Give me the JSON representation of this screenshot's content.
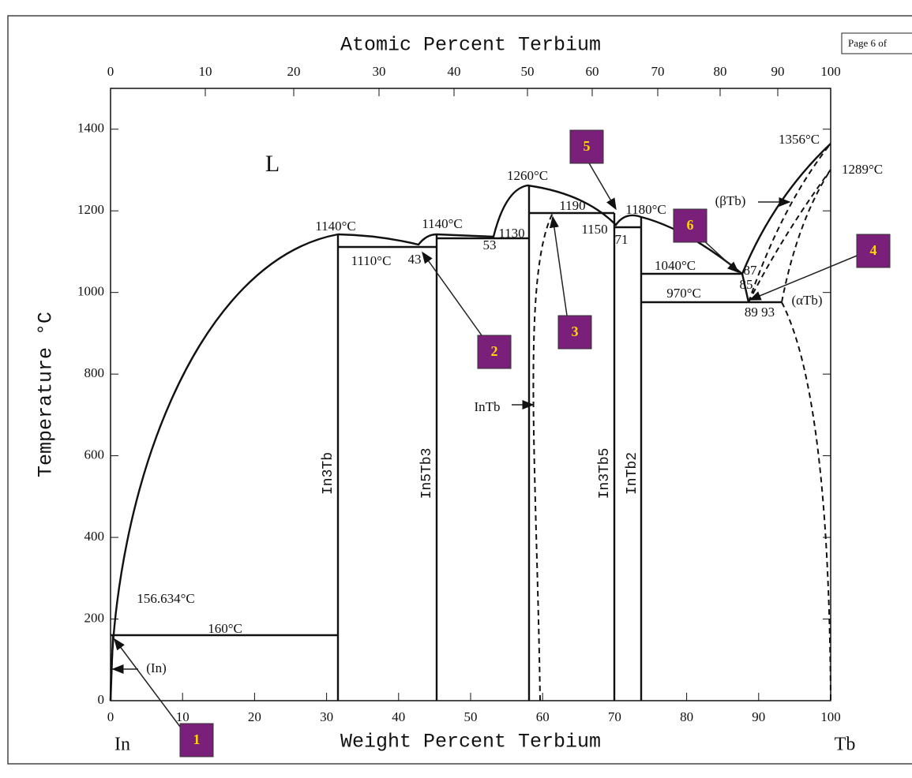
{
  "header": {
    "page_label": "Page 6 of"
  },
  "top_axis": {
    "title": "Atomic Percent Terbium",
    "ticks": [
      0,
      10,
      20,
      30,
      40,
      50,
      60,
      70,
      80,
      90,
      100
    ]
  },
  "bottom_axis": {
    "title": "Weight Percent Terbium",
    "ticks": [
      0,
      10,
      20,
      30,
      40,
      50,
      60,
      70,
      80,
      90,
      100
    ],
    "lim": [
      0,
      100
    ],
    "left_end": "In",
    "right_end": "Tb"
  },
  "left_axis": {
    "title": "Temperature °C",
    "ticks": [
      0,
      200,
      400,
      600,
      800,
      1000,
      1200,
      1400
    ],
    "lim": [
      0,
      1500
    ]
  },
  "labels": [
    "L",
    "1140°C",
    "1110°C",
    "43",
    "1140°C",
    "53",
    "1130",
    "1260°C",
    "1190",
    "1150",
    "71",
    "1180°C",
    "1040°C",
    "970°C",
    "85",
    "87",
    "89 93",
    "(αTb)",
    "(βTb)",
    "1356°C",
    "1289°C",
    "InTb",
    "156.634°C",
    "160°C",
    "(In)",
    "In3Tb",
    "In5Tb3",
    "In3Tb5",
    "InTb2"
  ],
  "markers": [
    "1",
    "2",
    "3",
    "4",
    "5",
    "6"
  ]
}
